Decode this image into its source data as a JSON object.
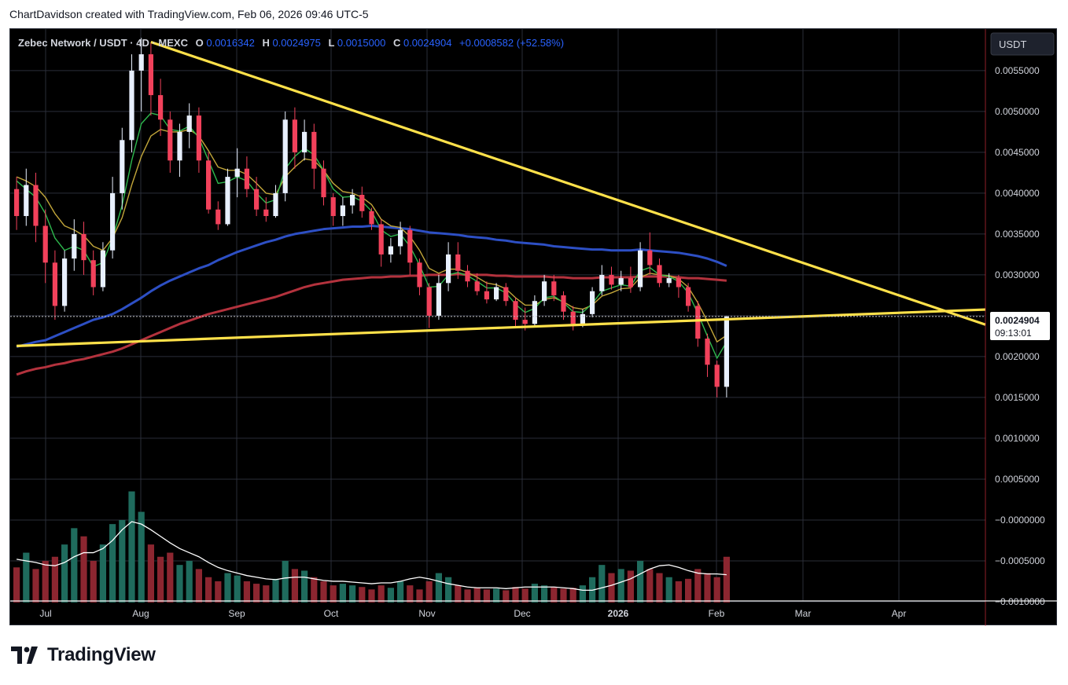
{
  "header": {
    "attribution": "ChartDavidson created with TradingView.com, Feb 06, 2026 09:46 UTC-5"
  },
  "legend": {
    "symbol": "Zebec Network / USDT · 4D · MEXC",
    "open_label": "O",
    "open_value": "0.0016342",
    "high_label": "H",
    "high_value": "0.0024975",
    "low_label": "L",
    "low_value": "0.0015000",
    "close_label": "C",
    "close_value": "0.0024904",
    "change": "+0.0008582 (+52.58%)"
  },
  "currency_button": "USDT",
  "price_tag": {
    "value": "0.0024904",
    "countdown": "09:13:01"
  },
  "footer": {
    "brand": "TradingView"
  },
  "colors": {
    "background": "#000000",
    "up": "#e8f0ff",
    "down": "#f2415b",
    "ema_fast": "#2db84d",
    "ema_slow": "#c2a63a",
    "ma_blue": "#2d4fc4",
    "ma_red": "#b3323d",
    "trendline": "#ffe14a",
    "volume_up": "#1f6b5d",
    "volume_down": "#8c2630",
    "volume_ma": "#ffffff"
  },
  "chart_data": {
    "type": "candlestick",
    "pair": "Zebec Network / USDT",
    "timeframe": "4D",
    "exchange": "MEXC",
    "price_axis_ticks": [
      "0.0055000",
      "0.0050000",
      "0.0045000",
      "0.0040000",
      "0.0035000",
      "0.0030000",
      "0.0025000",
      "0.0020000",
      "0.0015000",
      "0.0010000",
      "0.0005000",
      "−0.0000000",
      "−0.0005000",
      "−0.0010000"
    ],
    "time_axis_ticks": [
      "Jul",
      "Aug",
      "Sep",
      "Oct",
      "Nov",
      "Dec",
      "2026",
      "Feb",
      "Mar",
      "Apr"
    ],
    "ylim": [
      -0.00101,
      0.00597
    ],
    "candles": [
      {
        "o": 0.00405,
        "h": 0.0042,
        "c": 0.00372,
        "l": 0.00355
      },
      {
        "o": 0.00372,
        "h": 0.0043,
        "c": 0.0041,
        "l": 0.0036
      },
      {
        "o": 0.0041,
        "h": 0.00425,
        "c": 0.0036,
        "l": 0.0034
      },
      {
        "o": 0.0036,
        "h": 0.0038,
        "c": 0.00315,
        "l": 0.0029
      },
      {
        "o": 0.00315,
        "h": 0.0033,
        "c": 0.00262,
        "l": 0.00245
      },
      {
        "o": 0.00262,
        "h": 0.0033,
        "c": 0.0032,
        "l": 0.00255
      },
      {
        "o": 0.0032,
        "h": 0.00368,
        "c": 0.0035,
        "l": 0.00305
      },
      {
        "o": 0.0035,
        "h": 0.00365,
        "c": 0.00318,
        "l": 0.003
      },
      {
        "o": 0.00318,
        "h": 0.0033,
        "c": 0.00285,
        "l": 0.00275
      },
      {
        "o": 0.00285,
        "h": 0.0034,
        "c": 0.0033,
        "l": 0.0028
      },
      {
        "o": 0.0033,
        "h": 0.0042,
        "c": 0.004,
        "l": 0.0032
      },
      {
        "o": 0.004,
        "h": 0.0048,
        "c": 0.00465,
        "l": 0.0038
      },
      {
        "o": 0.00465,
        "h": 0.0057,
        "c": 0.0055,
        "l": 0.0045
      },
      {
        "o": 0.0055,
        "h": 0.0059,
        "c": 0.0057,
        "l": 0.005
      },
      {
        "o": 0.0057,
        "h": 0.00585,
        "c": 0.0052,
        "l": 0.00495
      },
      {
        "o": 0.0052,
        "h": 0.0054,
        "c": 0.0049,
        "l": 0.0047
      },
      {
        "o": 0.0049,
        "h": 0.005,
        "c": 0.0044,
        "l": 0.00425
      },
      {
        "o": 0.0044,
        "h": 0.00485,
        "c": 0.00475,
        "l": 0.0042
      },
      {
        "o": 0.00475,
        "h": 0.0051,
        "c": 0.00495,
        "l": 0.00455
      },
      {
        "o": 0.00495,
        "h": 0.00505,
        "c": 0.0044,
        "l": 0.00425
      },
      {
        "o": 0.0044,
        "h": 0.0045,
        "c": 0.0038,
        "l": 0.00375
      },
      {
        "o": 0.0038,
        "h": 0.0039,
        "c": 0.00362,
        "l": 0.00355
      },
      {
        "o": 0.00362,
        "h": 0.0043,
        "c": 0.0042,
        "l": 0.0036
      },
      {
        "o": 0.0042,
        "h": 0.00455,
        "c": 0.0043,
        "l": 0.00395
      },
      {
        "o": 0.0043,
        "h": 0.00445,
        "c": 0.00405,
        "l": 0.00395
      },
      {
        "o": 0.00405,
        "h": 0.0042,
        "c": 0.0038,
        "l": 0.00372
      },
      {
        "o": 0.0038,
        "h": 0.00395,
        "c": 0.00372,
        "l": 0.00365
      },
      {
        "o": 0.00372,
        "h": 0.0041,
        "c": 0.004,
        "l": 0.0037
      },
      {
        "o": 0.004,
        "h": 0.005,
        "c": 0.0049,
        "l": 0.0039
      },
      {
        "o": 0.0049,
        "h": 0.00505,
        "c": 0.0045,
        "l": 0.0043
      },
      {
        "o": 0.0045,
        "h": 0.0049,
        "c": 0.00475,
        "l": 0.0044
      },
      {
        "o": 0.00475,
        "h": 0.00485,
        "c": 0.0043,
        "l": 0.00405
      },
      {
        "o": 0.0043,
        "h": 0.0044,
        "c": 0.00395,
        "l": 0.00385
      },
      {
        "o": 0.00395,
        "h": 0.004,
        "c": 0.00372,
        "l": 0.0036
      },
      {
        "o": 0.00372,
        "h": 0.00395,
        "c": 0.00385,
        "l": 0.0036
      },
      {
        "o": 0.00385,
        "h": 0.00405,
        "c": 0.00398,
        "l": 0.00375
      },
      {
        "o": 0.00398,
        "h": 0.00408,
        "c": 0.00378,
        "l": 0.0037
      },
      {
        "o": 0.00378,
        "h": 0.00382,
        "c": 0.00362,
        "l": 0.00355
      },
      {
        "o": 0.00362,
        "h": 0.00368,
        "c": 0.00325,
        "l": 0.0031
      },
      {
        "o": 0.00325,
        "h": 0.00345,
        "c": 0.00335,
        "l": 0.00315
      },
      {
        "o": 0.00335,
        "h": 0.00365,
        "c": 0.00355,
        "l": 0.00325
      },
      {
        "o": 0.00355,
        "h": 0.0036,
        "c": 0.00315,
        "l": 0.003
      },
      {
        "o": 0.00315,
        "h": 0.0032,
        "c": 0.00285,
        "l": 0.00275
      },
      {
        "o": 0.00285,
        "h": 0.0029,
        "c": 0.0025,
        "l": 0.00235
      },
      {
        "o": 0.0025,
        "h": 0.003,
        "c": 0.0029,
        "l": 0.00245
      },
      {
        "o": 0.0029,
        "h": 0.0034,
        "c": 0.00325,
        "l": 0.0028
      },
      {
        "o": 0.00325,
        "h": 0.0034,
        "c": 0.00305,
        "l": 0.00295
      },
      {
        "o": 0.00305,
        "h": 0.00312,
        "c": 0.00292,
        "l": 0.00285
      },
      {
        "o": 0.00292,
        "h": 0.00302,
        "c": 0.0028,
        "l": 0.00275
      },
      {
        "o": 0.0028,
        "h": 0.00292,
        "c": 0.0027,
        "l": 0.00265
      },
      {
        "o": 0.0027,
        "h": 0.0029,
        "c": 0.00285,
        "l": 0.00268
      },
      {
        "o": 0.00285,
        "h": 0.0029,
        "c": 0.00268,
        "l": 0.00262
      },
      {
        "o": 0.00268,
        "h": 0.00272,
        "c": 0.00245,
        "l": 0.00235
      },
      {
        "o": 0.00245,
        "h": 0.0026,
        "c": 0.0024,
        "l": 0.00232
      },
      {
        "o": 0.0024,
        "h": 0.00275,
        "c": 0.00268,
        "l": 0.00236
      },
      {
        "o": 0.00268,
        "h": 0.003,
        "c": 0.00292,
        "l": 0.00262
      },
      {
        "o": 0.00292,
        "h": 0.003,
        "c": 0.00275,
        "l": 0.00268
      },
      {
        "o": 0.00275,
        "h": 0.0028,
        "c": 0.00255,
        "l": 0.00245
      },
      {
        "o": 0.00255,
        "h": 0.00262,
        "c": 0.0024,
        "l": 0.00232
      },
      {
        "o": 0.0024,
        "h": 0.00258,
        "c": 0.00252,
        "l": 0.00236
      },
      {
        "o": 0.00252,
        "h": 0.00285,
        "c": 0.0028,
        "l": 0.00248
      },
      {
        "o": 0.0028,
        "h": 0.00312,
        "c": 0.003,
        "l": 0.00275
      },
      {
        "o": 0.003,
        "h": 0.0031,
        "c": 0.00288,
        "l": 0.00282
      },
      {
        "o": 0.00288,
        "h": 0.00305,
        "c": 0.00296,
        "l": 0.0028
      },
      {
        "o": 0.00296,
        "h": 0.0031,
        "c": 0.00285,
        "l": 0.00278
      },
      {
        "o": 0.00285,
        "h": 0.0034,
        "c": 0.0033,
        "l": 0.0028
      },
      {
        "o": 0.0033,
        "h": 0.00352,
        "c": 0.00312,
        "l": 0.003
      },
      {
        "o": 0.00312,
        "h": 0.0032,
        "c": 0.0029,
        "l": 0.00285
      },
      {
        "o": 0.0029,
        "h": 0.00302,
        "c": 0.00296,
        "l": 0.00285
      },
      {
        "o": 0.00296,
        "h": 0.003,
        "c": 0.00285,
        "l": 0.00272
      },
      {
        "o": 0.00285,
        "h": 0.0029,
        "c": 0.00262,
        "l": 0.00255
      },
      {
        "o": 0.00262,
        "h": 0.00268,
        "c": 0.00222,
        "l": 0.00212
      },
      {
        "o": 0.00222,
        "h": 0.00228,
        "c": 0.0019,
        "l": 0.00175
      },
      {
        "o": 0.0019,
        "h": 0.00195,
        "c": 0.00163,
        "l": 0.0015
      },
      {
        "o": 0.00163,
        "h": 0.0025,
        "c": 0.00249,
        "l": 0.0015
      }
    ],
    "volume": [
      {
        "v": -0.00058,
        "up": false
      },
      {
        "v": -0.0004,
        "up": true
      },
      {
        "v": -0.0006,
        "up": false
      },
      {
        "v": -0.0005,
        "up": false
      },
      {
        "v": -0.00045,
        "up": false
      },
      {
        "v": -0.0003,
        "up": true
      },
      {
        "v": -0.0001,
        "up": true
      },
      {
        "v": -0.0002,
        "up": false
      },
      {
        "v": -0.0005,
        "up": false
      },
      {
        "v": -0.0003,
        "up": true
      },
      {
        "v": -5e-05,
        "up": true
      },
      {
        "v": 0.0,
        "up": true
      },
      {
        "v": 0.00035,
        "up": true
      },
      {
        "v": 0.0001,
        "up": true
      },
      {
        "v": -0.0003,
        "up": false
      },
      {
        "v": -0.00045,
        "up": false
      },
      {
        "v": -0.0004,
        "up": false
      },
      {
        "v": -0.00055,
        "up": true
      },
      {
        "v": -0.0005,
        "up": true
      },
      {
        "v": -0.0006,
        "up": false
      },
      {
        "v": -0.0007,
        "up": false
      },
      {
        "v": -0.00075,
        "up": false
      },
      {
        "v": -0.00065,
        "up": true
      },
      {
        "v": -0.00068,
        "up": true
      },
      {
        "v": -0.00075,
        "up": false
      },
      {
        "v": -0.00078,
        "up": false
      },
      {
        "v": -0.0008,
        "up": false
      },
      {
        "v": -0.00072,
        "up": true
      },
      {
        "v": -0.0005,
        "up": true
      },
      {
        "v": -0.0006,
        "up": false
      },
      {
        "v": -0.00062,
        "up": true
      },
      {
        "v": -0.0007,
        "up": false
      },
      {
        "v": -0.00075,
        "up": false
      },
      {
        "v": -0.0008,
        "up": false
      },
      {
        "v": -0.00078,
        "up": true
      },
      {
        "v": -0.0008,
        "up": true
      },
      {
        "v": -0.00082,
        "up": false
      },
      {
        "v": -0.00085,
        "up": false
      },
      {
        "v": -0.0008,
        "up": false
      },
      {
        "v": -0.00083,
        "up": true
      },
      {
        "v": -0.00075,
        "up": true
      },
      {
        "v": -0.0008,
        "up": false
      },
      {
        "v": -0.00085,
        "up": false
      },
      {
        "v": -0.00075,
        "up": false
      },
      {
        "v": -0.00065,
        "up": true
      },
      {
        "v": -0.0007,
        "up": true
      },
      {
        "v": -0.0008,
        "up": false
      },
      {
        "v": -0.00085,
        "up": false
      },
      {
        "v": -0.00083,
        "up": false
      },
      {
        "v": -0.00085,
        "up": false
      },
      {
        "v": -0.00084,
        "up": true
      },
      {
        "v": -0.00086,
        "up": false
      },
      {
        "v": -0.00082,
        "up": false
      },
      {
        "v": -0.00084,
        "up": false
      },
      {
        "v": -0.00078,
        "up": true
      },
      {
        "v": -0.0008,
        "up": true
      },
      {
        "v": -0.00082,
        "up": false
      },
      {
        "v": -0.00084,
        "up": false
      },
      {
        "v": -0.00083,
        "up": false
      },
      {
        "v": -0.0008,
        "up": true
      },
      {
        "v": -0.0007,
        "up": true
      },
      {
        "v": -0.00055,
        "up": true
      },
      {
        "v": -0.00065,
        "up": false
      },
      {
        "v": -0.0006,
        "up": true
      },
      {
        "v": -0.00062,
        "up": false
      },
      {
        "v": -0.0005,
        "up": true
      },
      {
        "v": -0.0006,
        "up": false
      },
      {
        "v": -0.00065,
        "up": false
      },
      {
        "v": -0.0007,
        "up": true
      },
      {
        "v": -0.00075,
        "up": false
      },
      {
        "v": -0.00072,
        "up": false
      },
      {
        "v": -0.0006,
        "up": false
      },
      {
        "v": -0.00065,
        "up": false
      },
      {
        "v": -0.0007,
        "up": false
      },
      {
        "v": -0.00045,
        "up": false
      }
    ],
    "volume_ma": [
      -0.00048,
      -0.0005,
      -0.00052,
      -0.00055,
      -0.00056,
      -0.00052,
      -0.00045,
      -0.0004,
      -0.0004,
      -0.00035,
      -0.00025,
      -0.00012,
      -2e-05,
      -5e-05,
      -0.00012,
      -0.0002,
      -0.00028,
      -0.00035,
      -0.0004,
      -0.00045,
      -0.00052,
      -0.00058,
      -0.00062,
      -0.00065,
      -0.00068,
      -0.0007,
      -0.00072,
      -0.00073,
      -0.00071,
      -0.0007,
      -0.0007,
      -0.00072,
      -0.00074,
      -0.00075,
      -0.00075,
      -0.00076,
      -0.00077,
      -0.00078,
      -0.00077,
      -0.00077,
      -0.00075,
      -0.00072,
      -0.0007,
      -0.00072,
      -0.00075,
      -0.00078,
      -0.0008,
      -0.00082,
      -0.00083,
      -0.00083,
      -0.00083,
      -0.00084,
      -0.00083,
      -0.00082,
      -0.00082,
      -0.00082,
      -0.00082,
      -0.00083,
      -0.00084,
      -0.00086,
      -0.00086,
      -0.00083,
      -0.0008,
      -0.00076,
      -0.00072,
      -0.00066,
      -0.0006,
      -0.00056,
      -0.00055,
      -0.00058,
      -0.00062,
      -0.00065,
      -0.00066,
      -0.00066,
      -0.00067
    ],
    "ma_blue": [
      0.00212,
      0.00215,
      0.00218,
      0.0022,
      0.00225,
      0.0023,
      0.00235,
      0.0024,
      0.00245,
      0.00248,
      0.00252,
      0.00258,
      0.00265,
      0.00272,
      0.0028,
      0.00287,
      0.00293,
      0.00298,
      0.00303,
      0.00308,
      0.00312,
      0.00318,
      0.00323,
      0.00328,
      0.00332,
      0.00336,
      0.0034,
      0.00343,
      0.00347,
      0.0035,
      0.00352,
      0.00354,
      0.00356,
      0.00357,
      0.00358,
      0.00359,
      0.00359,
      0.0036,
      0.00359,
      0.00358,
      0.00357,
      0.00356,
      0.00354,
      0.00352,
      0.00351,
      0.0035,
      0.00349,
      0.00347,
      0.00346,
      0.00345,
      0.00343,
      0.00342,
      0.0034,
      0.00339,
      0.00338,
      0.00337,
      0.00335,
      0.00334,
      0.00333,
      0.00332,
      0.00331,
      0.00331,
      0.0033,
      0.0033,
      0.0033,
      0.00331,
      0.0033,
      0.00329,
      0.00328,
      0.00327,
      0.00325,
      0.00323,
      0.0032,
      0.00316,
      0.00311
    ],
    "ma_red": [
      0.00178,
      0.00182,
      0.00185,
      0.00187,
      0.0019,
      0.00192,
      0.00195,
      0.00197,
      0.002,
      0.00203,
      0.00206,
      0.0021,
      0.00215,
      0.0022,
      0.00225,
      0.0023,
      0.00235,
      0.0024,
      0.00244,
      0.00248,
      0.00252,
      0.00255,
      0.00258,
      0.00261,
      0.00264,
      0.00267,
      0.0027,
      0.00273,
      0.00277,
      0.00281,
      0.00285,
      0.00288,
      0.0029,
      0.00292,
      0.00294,
      0.00295,
      0.00296,
      0.00297,
      0.00297,
      0.00298,
      0.00298,
      0.00299,
      0.00299,
      0.003,
      0.003,
      0.003,
      0.00301,
      0.003,
      0.003,
      0.003,
      0.00299,
      0.00299,
      0.00298,
      0.00298,
      0.00298,
      0.00298,
      0.00297,
      0.00297,
      0.00296,
      0.00296,
      0.00296,
      0.00297,
      0.00297,
      0.00297,
      0.00297,
      0.00298,
      0.00298,
      0.00298,
      0.00298,
      0.00297,
      0.00296,
      0.00296,
      0.00295,
      0.00294,
      0.00293
    ],
    "ema_fast": [
      0.00415,
      0.00405,
      0.00395,
      0.00375,
      0.00345,
      0.0033,
      0.00335,
      0.0033,
      0.0031,
      0.00315,
      0.00345,
      0.00385,
      0.0044,
      0.00485,
      0.00498,
      0.00495,
      0.00478,
      0.00476,
      0.00482,
      0.00468,
      0.0044,
      0.00412,
      0.00414,
      0.0042,
      0.00415,
      0.004,
      0.00388,
      0.00392,
      0.0043,
      0.00445,
      0.00455,
      0.00447,
      0.00428,
      0.00405,
      0.00395,
      0.00396,
      0.0039,
      0.00378,
      0.00355,
      0.00347,
      0.0035,
      0.00335,
      0.00312,
      0.00285,
      0.00286,
      0.003,
      0.00303,
      0.00299,
      0.00292,
      0.00284,
      0.00284,
      0.00278,
      0.00264,
      0.00254,
      0.00259,
      0.00272,
      0.00274,
      0.00266,
      0.00255,
      0.00254,
      0.00265,
      0.0028,
      0.00284,
      0.00288,
      0.00286,
      0.00305,
      0.00309,
      0.003,
      0.00298,
      0.00292,
      0.00278,
      0.00253,
      0.00225,
      0.00198,
      0.00218
    ],
    "ema_slow": [
      0.0042,
      0.00415,
      0.00408,
      0.00395,
      0.00375,
      0.0036,
      0.00355,
      0.00348,
      0.00335,
      0.0033,
      0.00345,
      0.0037,
      0.0041,
      0.00445,
      0.0047,
      0.00478,
      0.00475,
      0.00475,
      0.00478,
      0.0047,
      0.00452,
      0.00432,
      0.00428,
      0.00428,
      0.00423,
      0.00412,
      0.004,
      0.00398,
      0.0042,
      0.00432,
      0.00442,
      0.0044,
      0.00428,
      0.00412,
      0.00402,
      0.004,
      0.00395,
      0.00386,
      0.00368,
      0.0036,
      0.00358,
      0.00347,
      0.0033,
      0.00308,
      0.00302,
      0.00307,
      0.00307,
      0.00303,
      0.00297,
      0.0029,
      0.00288,
      0.00283,
      0.00272,
      0.00263,
      0.00263,
      0.0027,
      0.00272,
      0.00267,
      0.0026,
      0.00258,
      0.00263,
      0.00274,
      0.00278,
      0.00283,
      0.00284,
      0.00297,
      0.00302,
      0.003,
      0.00299,
      0.00295,
      0.00285,
      0.00266,
      0.00243,
      0.00218,
      0.00226
    ],
    "trendlines": [
      {
        "name": "descending resistance",
        "from": {
          "bar": 14,
          "price": 0.00585
        },
        "to": {
          "bar": 102,
          "price": 0.00235
        }
      },
      {
        "name": "rising support",
        "from": {
          "bar": 0,
          "price": 0.00213
        },
        "to": {
          "bar": 102,
          "price": 0.00258
        }
      }
    ],
    "grid": true
  }
}
